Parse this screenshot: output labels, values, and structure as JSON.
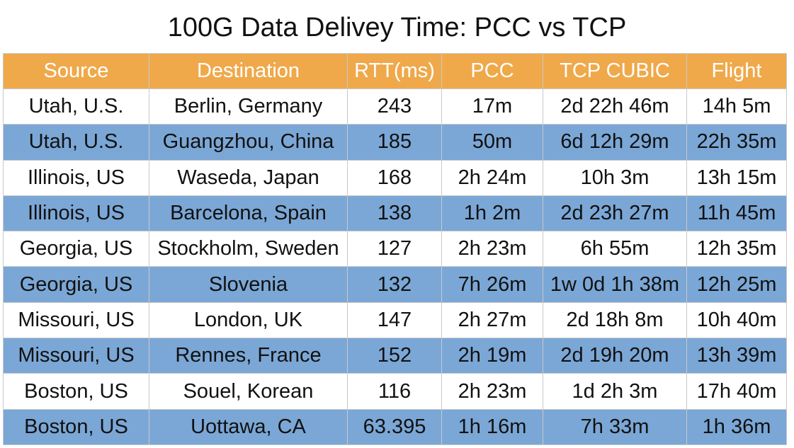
{
  "colors": {
    "header_bg": "#EFA94A",
    "band_bg": "#7BA7D6",
    "row_bg": "#FFFFFF"
  },
  "chart_data": {
    "type": "table",
    "title": "100G Data Delivey Time: PCC vs TCP",
    "columns": [
      "Source",
      "Destination",
      "RTT(ms)",
      "PCC",
      "TCP CUBIC",
      "Flight"
    ],
    "rows": [
      [
        "Utah, U.S.",
        "Berlin, Germany",
        "243",
        "17m",
        "2d 22h 46m",
        "14h 5m"
      ],
      [
        "Utah, U.S.",
        "Guangzhou, China",
        "185",
        "50m",
        "6d 12h 29m",
        "22h 35m"
      ],
      [
        "Illinois, US",
        "Waseda, Japan",
        "168",
        "2h 24m",
        "10h 3m",
        "13h 15m"
      ],
      [
        "Illinois, US",
        "Barcelona, Spain",
        "138",
        "1h 2m",
        "2d 23h 27m",
        "11h 45m"
      ],
      [
        "Georgia, US",
        "Stockholm, Sweden",
        "127",
        "2h 23m",
        "6h 55m",
        "12h 35m"
      ],
      [
        "Georgia, US",
        "Slovenia",
        "132",
        "7h 26m",
        "1w 0d 1h 38m",
        "12h 25m"
      ],
      [
        "Missouri, US",
        "London, UK",
        "147",
        "2h 27m",
        "2d 18h 8m",
        "10h 40m"
      ],
      [
        "Missouri, US",
        "Rennes, France",
        "152",
        "2h 19m",
        "2d 19h 20m",
        "13h 39m"
      ],
      [
        "Boston, US",
        "Souel, Korean",
        "116",
        "2h 23m",
        "1d 2h 3m",
        "17h 40m"
      ],
      [
        "Boston, US",
        "Uottawa, CA",
        "63.395",
        "1h 16m",
        "7h 33m",
        "1h 36m"
      ]
    ]
  }
}
